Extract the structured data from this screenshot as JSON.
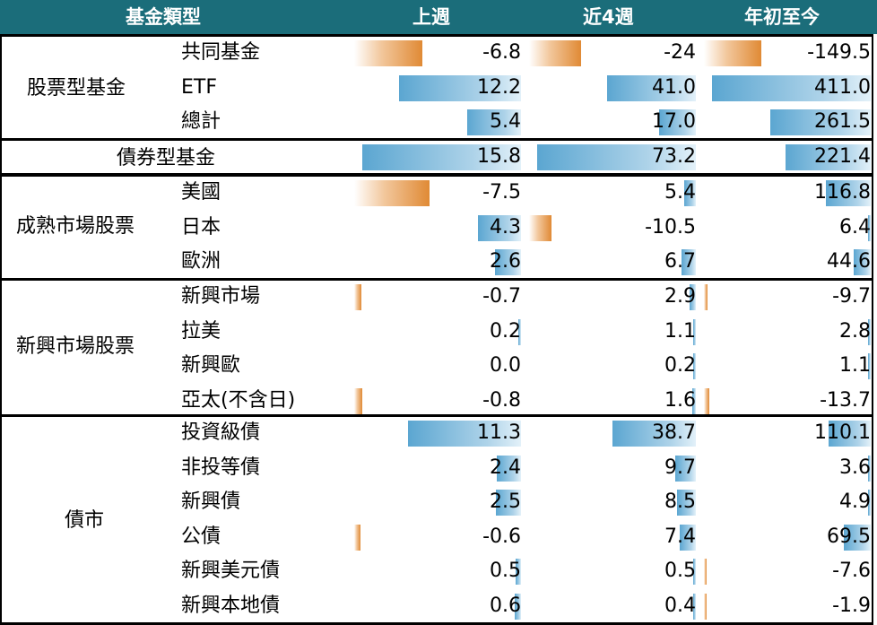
{
  "header": {
    "type_label": "基金類型",
    "col1": "上週",
    "col2": "近4週",
    "col3": "年初至今"
  },
  "colors": {
    "header_bg": "#1b6d7a",
    "positive_bar": "#5ba6d1",
    "negative_bar": "#e08a35"
  },
  "groups": [
    {
      "name": "股票型基金",
      "rows": [
        {
          "label": "共同基金",
          "v": [
            "-6.8",
            "-24",
            "-149.5"
          ]
        },
        {
          "label": "ETF",
          "v": [
            "12.2",
            "41.0",
            "411.0"
          ]
        },
        {
          "label": "總計",
          "v": [
            "5.4",
            "17.0",
            "261.5"
          ]
        }
      ]
    },
    {
      "name": "債券型基金",
      "rows": [
        {
          "label": "",
          "v": [
            "15.8",
            "73.2",
            "221.4"
          ]
        }
      ]
    },
    {
      "name": "成熟市場股票",
      "rows": [
        {
          "label": "美國",
          "v": [
            "-7.5",
            "5.4",
            "116.8"
          ]
        },
        {
          "label": "日本",
          "v": [
            "4.3",
            "-10.5",
            "6.4"
          ]
        },
        {
          "label": "歐洲",
          "v": [
            "2.6",
            "6.7",
            "44.6"
          ]
        }
      ]
    },
    {
      "name": "新興市場股票",
      "rows": [
        {
          "label": "新興市場",
          "v": [
            "-0.7",
            "2.9",
            "-9.7"
          ]
        },
        {
          "label": "拉美",
          "v": [
            "0.2",
            "1.1",
            "2.8"
          ]
        },
        {
          "label": "新興歐",
          "v": [
            "0.0",
            "0.2",
            "1.1"
          ]
        },
        {
          "label": "亞太(不含日)",
          "v": [
            "-0.8",
            "1.6",
            "-13.7"
          ]
        }
      ]
    },
    {
      "name": "債市",
      "rows": [
        {
          "label": "投資級債",
          "v": [
            "11.3",
            "38.7",
            "110.1"
          ]
        },
        {
          "label": "非投等債",
          "v": [
            "2.4",
            "9.7",
            "3.6"
          ]
        },
        {
          "label": "新興債",
          "v": [
            "2.5",
            "8.5",
            "4.9"
          ]
        },
        {
          "label": "公債",
          "v": [
            "-0.6",
            "7.4",
            "69.5"
          ]
        },
        {
          "label": "新興美元債",
          "v": [
            "0.5",
            "0.5",
            "-7.6"
          ]
        },
        {
          "label": "新興本地債",
          "v": [
            "0.6",
            "0.4",
            "-1.9"
          ]
        }
      ]
    }
  ]
}
